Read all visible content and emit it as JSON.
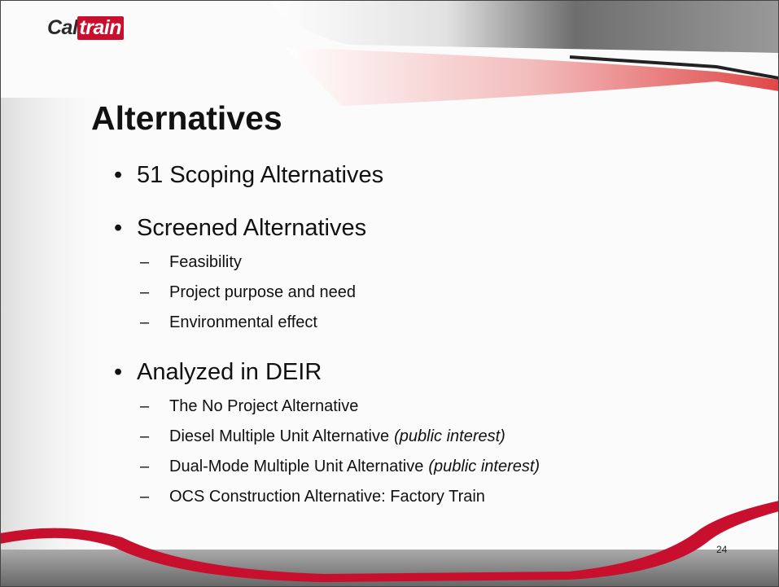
{
  "logo": {
    "part1": "Cal",
    "part2": "train"
  },
  "title": "Alternatives",
  "bullets": [
    {
      "text": "51 Scoping Alternatives",
      "items": []
    },
    {
      "text": "Screened Alternatives",
      "items": [
        {
          "text": "Feasibility"
        },
        {
          "text": "Project purpose and need"
        },
        {
          "text": "Environmental effect"
        }
      ]
    },
    {
      "text": "Analyzed in DEIR",
      "items": [
        {
          "text": "The No Project Alternative"
        },
        {
          "text": "Diesel Multiple Unit Alternative",
          "note": "(public interest)"
        },
        {
          "text": "Dual-Mode Multiple Unit Alternative",
          "note": "(public interest)"
        },
        {
          "text": "OCS Construction Alternative: Factory Train"
        }
      ]
    }
  ],
  "page_number": "24"
}
